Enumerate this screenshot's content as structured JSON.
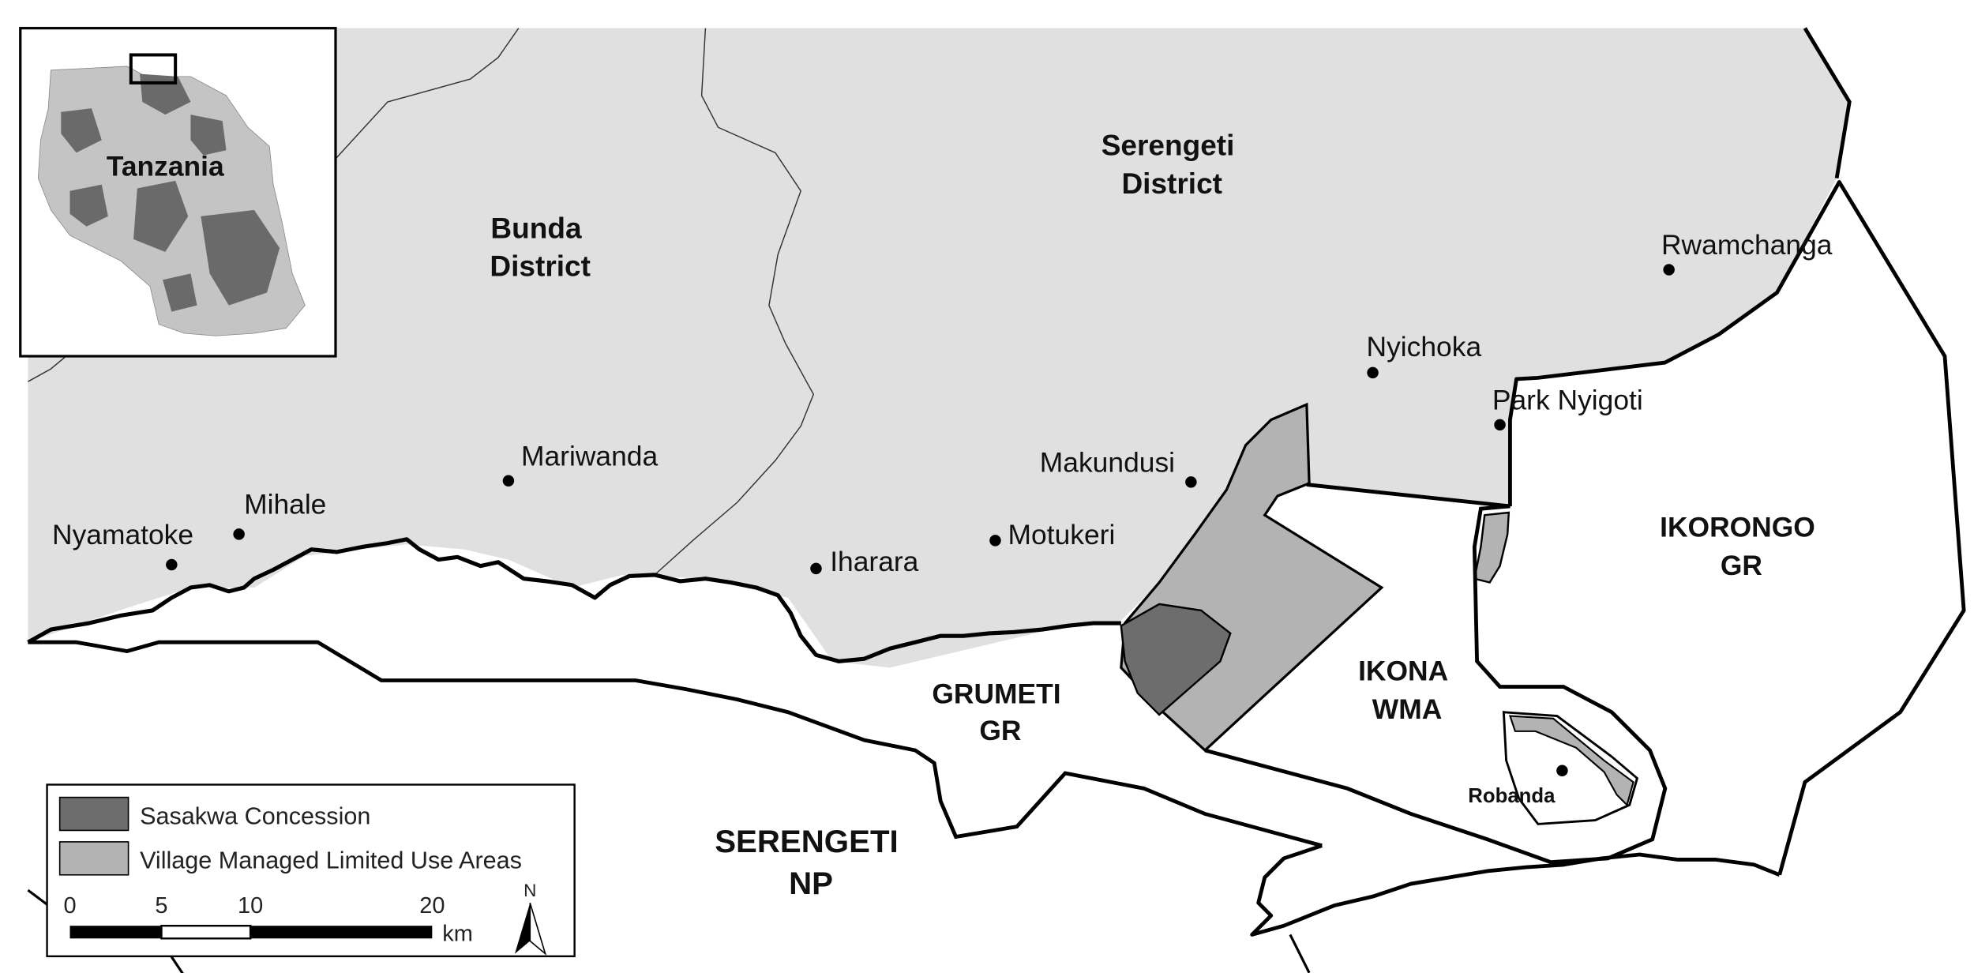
{
  "map": {
    "colors": {
      "district_fill": "#e0e0e0",
      "protected_fill": "#ffffff",
      "sasakwa": "#6d6d6d",
      "village_area": "#b3b3b3",
      "boundary": "#000000"
    },
    "regions": {
      "serengeti_district": [
        "Serengeti",
        "District"
      ],
      "bunda_district": [
        "Bunda",
        "District"
      ],
      "grumeti_gr": [
        "GRUMETI",
        "GR"
      ],
      "ikona_wma": [
        "IKONA",
        "WMA"
      ],
      "ikorongo_gr": [
        "IKORONGO",
        "GR"
      ],
      "serengeti_np": [
        "SERENGETI",
        "NP"
      ]
    },
    "villages": {
      "rwamchanga": "Rwamchanga",
      "nyichoka": "Nyichoka",
      "park_nyigoti": "Park Nyigoti",
      "makundusi": "Makundusi",
      "mariwanda": "Mariwanda",
      "mihale": "Mihale",
      "nyamatoke": "Nyamatoke",
      "iharara": "Iharara",
      "motukeri": "Motukeri",
      "robanda": "Robanda"
    },
    "inset": {
      "label": "Tanzania",
      "land_fill": "#c4c4c4",
      "protected_fill": "#6a6a6a"
    },
    "legend": {
      "items": [
        {
          "label": "Sasakwa Concession",
          "color": "#6d6d6d"
        },
        {
          "label": "Village Managed Limited Use Areas",
          "color": "#b3b3b3"
        }
      ]
    },
    "scale_bar": {
      "ticks": [
        "0",
        "5",
        "10",
        "20"
      ],
      "unit": "km"
    },
    "north_arrow": {
      "label": "N"
    }
  }
}
